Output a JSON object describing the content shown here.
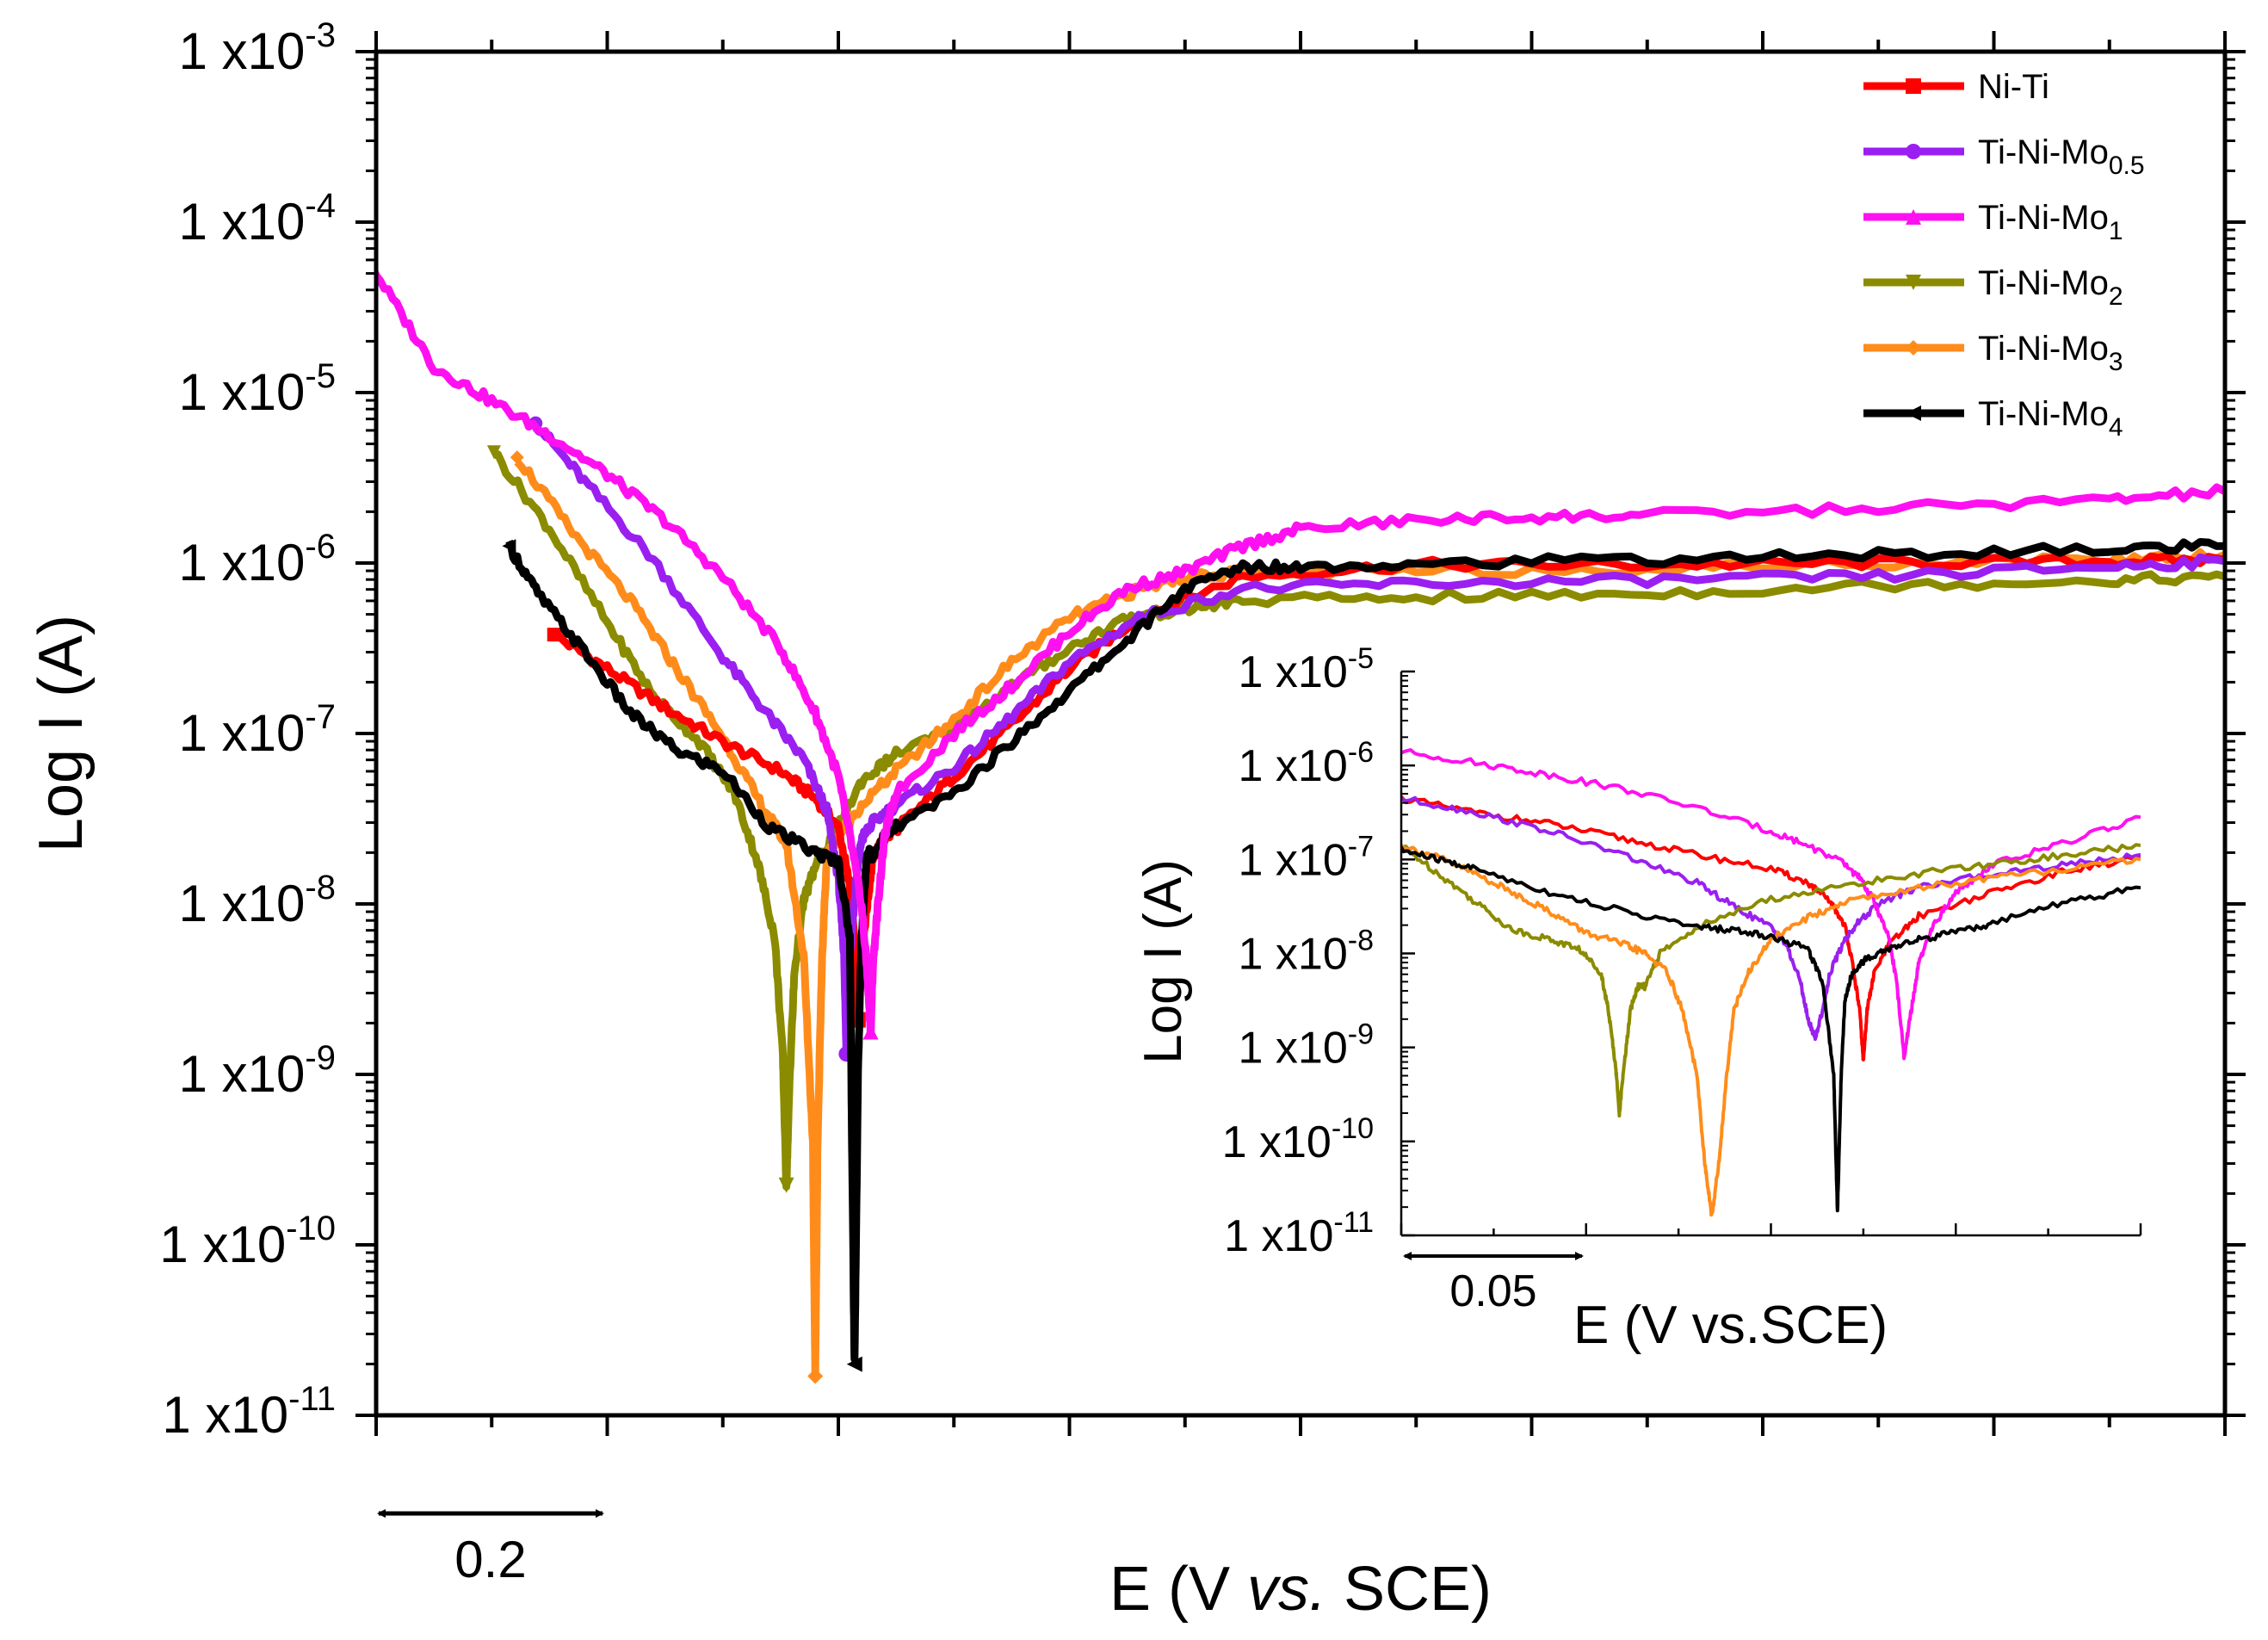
{
  "chart_data": [
    {
      "type": "line",
      "name": "main",
      "xlabel_prefix": "E (V ",
      "xlabel_italic": "vs.",
      "xlabel_suffix": " SCE)",
      "ylabel": "Log I (A)",
      "xlim": [
        -1.1,
        0.5
      ],
      "ylog_range": [
        -11,
        -3
      ],
      "ytick_base": "1 x10",
      "yticks": [
        "-3",
        "-4",
        "-5",
        "-6",
        "-7",
        "-8",
        "-9",
        "-10",
        "-11"
      ],
      "scale_bar_label": "0.2",
      "legend_position": "top-right",
      "series": [
        {
          "name": "Ni-Ti",
          "sub": "",
          "color": "#ff0000",
          "marker": "square",
          "x": [
            -0.946,
            -0.9,
            -0.85,
            -0.8,
            -0.75,
            -0.72,
            -0.7,
            -0.69,
            -0.685,
            -0.683,
            -0.68,
            -0.675,
            -0.67,
            -0.66,
            -0.64,
            -0.6,
            -0.55,
            -0.5,
            -0.44,
            -0.35,
            -0.2,
            0.0,
            0.2,
            0.4,
            0.5
          ],
          "y": [
            -6.42,
            -6.62,
            -6.85,
            -7.05,
            -7.22,
            -7.38,
            -7.55,
            -7.9,
            -8.3,
            -8.68,
            -8.3,
            -8.0,
            -7.72,
            -7.62,
            -7.5,
            -7.25,
            -6.95,
            -6.62,
            -6.32,
            -6.08,
            -6.01,
            -6.01,
            -6.0,
            -5.99,
            -5.98
          ]
        },
        {
          "name": "Ti-Ni-Mo",
          "sub": "0.5",
          "color": "#9a1ff0",
          "marker": "circle",
          "x": [
            -0.962,
            -0.92,
            -0.86,
            -0.8,
            -0.76,
            -0.73,
            -0.71,
            -0.7,
            -0.695,
            -0.693,
            -0.69,
            -0.685,
            -0.68,
            -0.67,
            -0.65,
            -0.6,
            -0.55,
            -0.5,
            -0.44,
            -0.35,
            -0.2,
            0.0,
            0.2,
            0.4,
            0.5
          ],
          "y": [
            -5.18,
            -5.52,
            -5.98,
            -6.55,
            -6.9,
            -7.15,
            -7.45,
            -7.85,
            -8.3,
            -8.88,
            -8.3,
            -7.9,
            -7.62,
            -7.52,
            -7.42,
            -7.2,
            -6.9,
            -6.58,
            -6.32,
            -6.15,
            -6.12,
            -6.1,
            -6.08,
            -6.02,
            -5.99
          ]
        },
        {
          "name": "Ti-Ni-Mo",
          "sub": "1",
          "color": "#ff10f0",
          "marker": "triangle-up",
          "x": [
            -1.1,
            -1.05,
            -1.0,
            -0.95,
            -0.9,
            -0.85,
            -0.8,
            -0.75,
            -0.72,
            -0.7,
            -0.69,
            -0.68,
            -0.675,
            -0.672,
            -0.67,
            -0.665,
            -0.66,
            -0.65,
            -0.6,
            -0.55,
            -0.5,
            -0.45,
            -0.4,
            -0.35,
            -0.3,
            -0.2,
            -0.1,
            0.0,
            0.2,
            0.4,
            0.5
          ],
          "y": [
            -4.3,
            -4.85,
            -5.05,
            -5.25,
            -5.48,
            -5.75,
            -6.08,
            -6.5,
            -6.88,
            -7.25,
            -7.6,
            -8.0,
            -8.4,
            -8.75,
            -8.35,
            -7.95,
            -7.6,
            -7.35,
            -7.0,
            -6.72,
            -6.4,
            -6.15,
            -6.05,
            -5.9,
            -5.8,
            -5.75,
            -5.73,
            -5.72,
            -5.68,
            -5.63,
            -5.58
          ]
        },
        {
          "name": "Ti-Ni-Mo",
          "sub": "2",
          "color": "#8b8b00",
          "marker": "triangle-down",
          "x": [
            -0.998,
            -0.95,
            -0.9,
            -0.86,
            -0.82,
            -0.79,
            -0.77,
            -0.755,
            -0.748,
            -0.745,
            -0.742,
            -0.738,
            -0.73,
            -0.72,
            -0.7,
            -0.68,
            -0.65,
            -0.6,
            -0.55,
            -0.5,
            -0.45,
            -0.4,
            -0.35,
            -0.2,
            0.0,
            0.2,
            0.4,
            0.5
          ],
          "y": [
            -5.35,
            -5.8,
            -6.35,
            -6.78,
            -7.05,
            -7.35,
            -7.75,
            -8.2,
            -8.9,
            -9.65,
            -9.0,
            -8.4,
            -7.98,
            -7.78,
            -7.55,
            -7.28,
            -7.12,
            -6.97,
            -6.72,
            -6.5,
            -6.32,
            -6.27,
            -6.22,
            -6.2,
            -6.18,
            -6.13,
            -6.1,
            -6.08
          ]
        },
        {
          "name": "Ti-Ni-Mo",
          "sub": "3",
          "color": "#ff8c1a",
          "marker": "diamond",
          "x": [
            -0.978,
            -0.93,
            -0.88,
            -0.84,
            -0.8,
            -0.77,
            -0.745,
            -0.73,
            -0.722,
            -0.72,
            -0.718,
            -0.714,
            -0.71,
            -0.7,
            -0.68,
            -0.65,
            -0.6,
            -0.55,
            -0.5,
            -0.45,
            -0.4,
            -0.35,
            -0.2,
            0.0,
            0.2,
            0.4,
            0.5
          ],
          "y": [
            -5.38,
            -5.82,
            -6.22,
            -6.62,
            -7.02,
            -7.38,
            -7.65,
            -8.3,
            -9.4,
            -10.77,
            -9.4,
            -8.3,
            -7.72,
            -7.6,
            -7.42,
            -7.22,
            -6.92,
            -6.58,
            -6.32,
            -6.18,
            -6.08,
            -6.05,
            -6.05,
            -6.03,
            -6.0,
            -5.98,
            -5.95
          ]
        },
        {
          "name": "Ti-Ni-Mo",
          "sub": "4",
          "color": "#000000",
          "marker": "triangle-left",
          "x": [
            -0.985,
            -0.96,
            -0.92,
            -0.88,
            -0.84,
            -0.8,
            -0.76,
            -0.72,
            -0.7,
            -0.69,
            -0.688,
            -0.686,
            -0.683,
            -0.68,
            -0.675,
            -0.67,
            -0.66,
            -0.65,
            -0.6,
            -0.55,
            -0.5,
            -0.45,
            -0.4,
            -0.35,
            -0.3,
            -0.2,
            0.0,
            0.2,
            0.4,
            0.5
          ],
          "y": [
            -5.9,
            -6.18,
            -6.52,
            -6.88,
            -7.1,
            -7.22,
            -7.55,
            -7.7,
            -7.75,
            -8.2,
            -9.5,
            -10.7,
            -9.0,
            -8.2,
            -7.68,
            -7.72,
            -7.6,
            -7.55,
            -7.35,
            -7.05,
            -6.75,
            -6.45,
            -6.15,
            -6.02,
            -6.02,
            -6.0,
            -5.98,
            -5.95,
            -5.92,
            -5.9
          ]
        }
      ]
    },
    {
      "type": "line",
      "name": "inset",
      "xlabel": "E (V vs.SCE)",
      "ylabel": "Log I (A)",
      "xlim": [
        0,
        1
      ],
      "ylog_range": [
        -11,
        -5
      ],
      "ytick_base": "1 x10",
      "yticks": [
        "-5",
        "-6",
        "-7",
        "-8",
        "-9",
        "-10",
        "-11"
      ],
      "scale_bar_label": "0.05",
      "series": [
        {
          "color": "#ff0000",
          "x": [
            0.0,
            0.1,
            0.2,
            0.3,
            0.4,
            0.5,
            0.55,
            0.58,
            0.6,
            0.61,
            0.62,
            0.625,
            0.63,
            0.64,
            0.66,
            0.7,
            0.8,
            0.9,
            1.0
          ],
          "y": [
            -6.35,
            -6.5,
            -6.62,
            -6.78,
            -6.95,
            -7.1,
            -7.25,
            -7.45,
            -7.7,
            -8.1,
            -8.6,
            -9.15,
            -8.6,
            -8.2,
            -7.9,
            -7.6,
            -7.35,
            -7.12,
            -6.98
          ]
        },
        {
          "color": "#9a1ff0",
          "x": [
            0.0,
            0.1,
            0.2,
            0.3,
            0.4,
            0.45,
            0.5,
            0.52,
            0.54,
            0.55,
            0.56,
            0.57,
            0.58,
            0.6,
            0.62,
            0.65,
            0.7,
            0.8,
            0.9,
            1.0
          ],
          "y": [
            -6.35,
            -6.5,
            -6.7,
            -6.95,
            -7.25,
            -7.5,
            -7.72,
            -7.9,
            -8.3,
            -8.7,
            -8.9,
            -8.6,
            -8.2,
            -7.85,
            -7.65,
            -7.45,
            -7.3,
            -7.15,
            -7.05,
            -6.95
          ]
        },
        {
          "color": "#ff10f0",
          "x": [
            0.0,
            0.1,
            0.2,
            0.3,
            0.4,
            0.5,
            0.55,
            0.6,
            0.62,
            0.64,
            0.66,
            0.67,
            0.68,
            0.69,
            0.7,
            0.72,
            0.75,
            0.8,
            0.9,
            1.0
          ],
          "y": [
            -5.85,
            -5.97,
            -6.1,
            -6.25,
            -6.45,
            -6.7,
            -6.85,
            -7.05,
            -7.2,
            -7.45,
            -7.85,
            -8.3,
            -9.1,
            -8.6,
            -8.1,
            -7.7,
            -7.35,
            -7.05,
            -6.82,
            -6.55
          ]
        },
        {
          "color": "#8b8b00",
          "x": [
            0.0,
            0.05,
            0.1,
            0.15,
            0.2,
            0.24,
            0.27,
            0.28,
            0.29,
            0.295,
            0.3,
            0.31,
            0.32,
            0.33,
            0.35,
            0.4,
            0.5,
            0.6,
            0.7,
            0.8,
            0.9,
            1.0
          ],
          "y": [
            -6.85,
            -7.15,
            -7.45,
            -7.75,
            -7.85,
            -7.95,
            -8.2,
            -8.6,
            -9.2,
            -9.7,
            -9.3,
            -8.6,
            -8.35,
            -8.35,
            -8.0,
            -7.72,
            -7.42,
            -7.28,
            -7.15,
            -7.05,
            -6.95,
            -6.85
          ]
        },
        {
          "color": "#ff8c1a",
          "x": [
            0.0,
            0.05,
            0.1,
            0.15,
            0.2,
            0.25,
            0.3,
            0.33,
            0.36,
            0.38,
            0.4,
            0.41,
            0.42,
            0.43,
            0.44,
            0.45,
            0.47,
            0.5,
            0.55,
            0.6,
            0.7,
            0.8,
            0.9,
            1.0
          ],
          "y": [
            -6.85,
            -6.98,
            -7.15,
            -7.35,
            -7.55,
            -7.78,
            -7.9,
            -8.0,
            -8.2,
            -8.6,
            -9.3,
            -10.2,
            -10.8,
            -10.2,
            -9.3,
            -8.6,
            -8.2,
            -7.85,
            -7.62,
            -7.45,
            -7.3,
            -7.2,
            -7.1,
            -7.0
          ]
        },
        {
          "color": "#000000",
          "x": [
            0.0,
            0.05,
            0.1,
            0.2,
            0.3,
            0.4,
            0.45,
            0.5,
            0.55,
            0.57,
            0.585,
            0.59,
            0.595,
            0.6,
            0.61,
            0.63,
            0.66,
            0.7,
            0.75,
            0.8,
            0.9,
            1.0
          ],
          "y": [
            -6.9,
            -7.0,
            -7.1,
            -7.35,
            -7.55,
            -7.72,
            -7.75,
            -7.82,
            -7.95,
            -8.3,
            -9.3,
            -10.75,
            -9.3,
            -8.5,
            -8.2,
            -8.05,
            -7.95,
            -7.85,
            -7.78,
            -7.68,
            -7.45,
            -7.3
          ]
        }
      ]
    }
  ]
}
